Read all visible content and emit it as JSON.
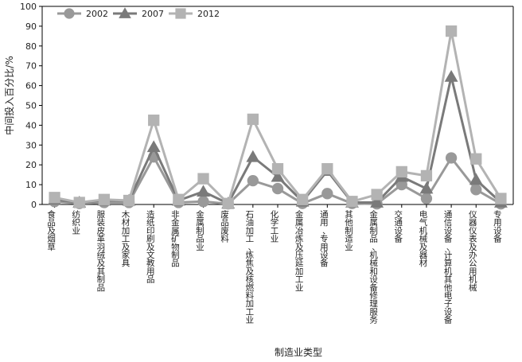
{
  "chart_data": {
    "type": "line",
    "title": "",
    "xlabel": "制造业类型",
    "ylabel": "中间投入百分比/%",
    "ylim": [
      0,
      100
    ],
    "yticks": [
      0,
      10,
      20,
      30,
      40,
      50,
      60,
      70,
      80,
      90,
      100
    ],
    "grid": false,
    "legend_position": "top-left",
    "categories": [
      "食品及烟草",
      "纺织业",
      "服装皮革羽绒及其制品",
      "木材加工及家具",
      "造纸印刷及文教用品",
      "非金属矿物制品",
      "金属制品业",
      "废品废料",
      "石油加工、炼焦及核燃料加工业",
      "化学工业",
      "金属冶炼及压延加工业",
      "通用、专用设备",
      "其他制造业",
      "金属制品、机械和设备修理服务",
      "交通设备",
      "电气机械及器材",
      "通信设备、计算机其他电子设备",
      "仪器仪表及办公用机械",
      "专用设备"
    ],
    "series": [
      {
        "name": "2002",
        "color": "#999999",
        "marker": "circle",
        "values": [
          1.5,
          0.5,
          1.0,
          1.0,
          24,
          1.0,
          1.5,
          0.3,
          12,
          8,
          0.5,
          5.5,
          0.5,
          0.3,
          10,
          3,
          23.5,
          7.5,
          0.3
        ]
      },
      {
        "name": "2007",
        "color": "#7a7a7a",
        "marker": "triangle",
        "values": [
          2.5,
          1.0,
          2.0,
          2.0,
          29,
          2.0,
          6.5,
          0.5,
          24,
          14,
          1.5,
          17,
          1.0,
          1.0,
          14,
          8,
          64.5,
          12.5,
          1.0
        ]
      },
      {
        "name": "2012",
        "color": "#b3b3b3",
        "marker": "square",
        "values": [
          3.5,
          1.0,
          2.5,
          2.0,
          42.5,
          2.5,
          13,
          0.5,
          43,
          18,
          2.5,
          18,
          1.5,
          5.0,
          16.5,
          14.5,
          87.5,
          23,
          3.0
        ]
      }
    ]
  }
}
